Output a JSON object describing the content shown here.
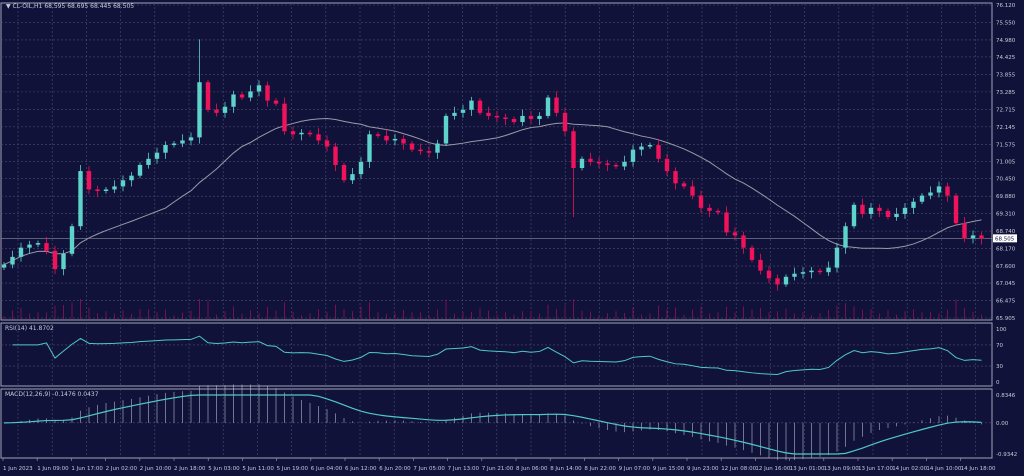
{
  "header": {
    "symbol": "CL-OIL,H1",
    "open": "68.595",
    "high": "68.695",
    "low": "68.445",
    "close": "68.505"
  },
  "colors": {
    "background": "#10123a",
    "bull": "#5ed3cb",
    "bear": "#f0125a",
    "ma": "#9a9aa6",
    "grid": "#4a4d6e",
    "indicator": "#4fc9c4"
  },
  "chart_data": [
    {
      "type": "candlestick",
      "title": "CL-OIL,H1",
      "ylim": [
        65.905,
        76.12
      ],
      "y_ticks": [
        "76.120",
        "75.550",
        "74.980",
        "74.425",
        "73.855",
        "73.285",
        "72.715",
        "72.145",
        "71.575",
        "71.005",
        "70.450",
        "69.880",
        "69.310",
        "68.740",
        "68.170",
        "67.600",
        "67.045",
        "66.475",
        "65.905"
      ],
      "current_price": "68.505",
      "x_ticks": [
        "1 Jun 2023",
        "1 Jun 09:00",
        "1 Jun 17:00",
        "2 Jun 02:00",
        "2 Jun 10:00",
        "2 Jun 18:00",
        "5 Jun 03:00",
        "5 Jun 11:00",
        "5 Jun 19:00",
        "6 Jun 04:00",
        "6 Jun 12:00",
        "6 Jun 20:00",
        "7 Jun 05:00",
        "7 Jun 13:00",
        "7 Jun 21:00",
        "8 Jun 06:00",
        "8 Jun 14:00",
        "8 Jun 22:00",
        "9 Jun 07:00",
        "9 Jun 15:00",
        "9 Jun 23:00",
        "12 Jun 08:00",
        "12 Jun 16:00",
        "13 Jun 01:00",
        "13 Jun 09:00",
        "13 Jun 17:00",
        "14 Jun 02:00",
        "14 Jun 10:00",
        "14 Jun 18:00"
      ],
      "closes": [
        67.65,
        67.9,
        68.2,
        68.3,
        68.35,
        68.1,
        67.5,
        68.0,
        68.9,
        70.7,
        70.1,
        70.05,
        70.1,
        70.2,
        70.4,
        70.55,
        70.9,
        71.1,
        71.3,
        71.55,
        71.6,
        71.7,
        71.8,
        73.6,
        72.7,
        72.6,
        72.8,
        73.2,
        73.1,
        73.3,
        73.5,
        73.0,
        72.9,
        72.0,
        71.9,
        71.95,
        71.9,
        71.7,
        71.5,
        70.9,
        70.4,
        70.6,
        71.0,
        71.9,
        71.85,
        71.7,
        71.75,
        71.6,
        71.4,
        71.35,
        71.3,
        71.6,
        72.5,
        72.6,
        72.7,
        73.0,
        72.6,
        72.5,
        72.45,
        72.4,
        72.3,
        72.5,
        72.4,
        72.5,
        73.1,
        72.6,
        72.0,
        70.8,
        71.1,
        71.0,
        70.95,
        70.9,
        70.85,
        71.0,
        71.4,
        71.5,
        71.55,
        71.1,
        70.7,
        70.3,
        70.2,
        69.9,
        69.5,
        69.4,
        69.35,
        68.7,
        68.6,
        68.2,
        67.8,
        67.45,
        67.2,
        67.0,
        67.25,
        67.35,
        67.4,
        67.45,
        67.4,
        67.55,
        68.2,
        68.9,
        69.6,
        69.3,
        69.5,
        69.4,
        69.2,
        69.3,
        69.5,
        69.7,
        69.9,
        70.0,
        70.2,
        69.9,
        69.0,
        68.5,
        68.6,
        68.505
      ],
      "spikes": [
        {
          "index": 23,
          "high": 75.0
        },
        {
          "index": 67,
          "low": 69.2
        }
      ]
    },
    {
      "type": "line",
      "title": "RSI(14) 41.8702",
      "name": "RSI(14)",
      "value": "41.8702",
      "ylim": [
        0,
        100
      ],
      "y_ticks": [
        "100",
        "70",
        "30",
        "0"
      ]
    },
    {
      "type": "line",
      "title": "MACD(12,26,9) -0.1476 0.0437",
      "name": "MACD(12,26,9)",
      "values": [
        "-0.1476",
        "0.0437"
      ],
      "ylim": [
        -0.9342,
        0.8346
      ],
      "y_ticks": [
        "0.8346",
        "0.00",
        "-0.9342"
      ]
    }
  ]
}
